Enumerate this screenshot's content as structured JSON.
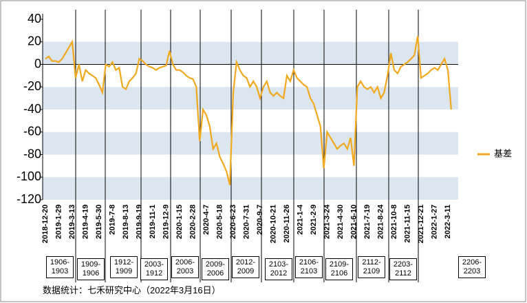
{
  "chart_data": {
    "type": "line",
    "x": [
      "2018-12-20",
      null,
      null,
      null,
      "2019-1-29",
      null,
      null,
      null,
      "2019-3-13",
      null,
      null,
      null,
      "2019-4-19",
      null,
      null,
      null,
      "2019-5-30",
      null,
      null,
      null,
      "2019-7-8",
      null,
      null,
      null,
      "2019-8-13",
      null,
      null,
      null,
      "2019-9-19",
      null,
      null,
      null,
      "2019-11-1",
      null,
      null,
      null,
      "2019-12-9",
      null,
      null,
      null,
      "2020-1-15",
      null,
      null,
      null,
      "2020-2-28",
      null,
      null,
      null,
      "2020-4-7",
      null,
      null,
      null,
      "2020-5-18",
      null,
      null,
      null,
      "2020-6-23",
      null,
      null,
      null,
      "2020-7-31",
      null,
      null,
      null,
      "2020-9-7",
      null,
      null,
      null,
      "2020-10-21",
      null,
      null,
      null,
      "2020-11-26",
      null,
      null,
      null,
      "2021-1-4",
      null,
      null,
      null,
      "2021-2-9",
      null,
      null,
      null,
      "2021-3-24",
      null,
      null,
      null,
      "2021-4-30",
      null,
      null,
      null,
      "2021-6-10",
      null,
      null,
      null,
      "2021-7-19",
      null,
      null,
      null,
      "2021-8-24",
      null,
      null,
      null,
      "2021-10-8",
      null,
      null,
      null,
      "2021-11-15",
      null,
      null,
      null,
      "2021-12-21",
      null,
      null,
      null,
      "2022-1-27",
      null,
      null,
      null,
      "2022-3-11",
      null
    ],
    "series": [
      {
        "name": "基差",
        "color": "#f2a81d",
        "values": [
          5,
          7,
          3,
          3,
          2,
          5,
          10,
          15,
          20,
          -12,
          0,
          -15,
          -5,
          -8,
          -10,
          -12,
          -18,
          -25,
          0,
          -2,
          2,
          -5,
          -3,
          -20,
          -22,
          -15,
          -12,
          -8,
          5,
          3,
          0,
          -2,
          -3,
          -5,
          -3,
          -2,
          -1,
          12,
          0,
          -5,
          -5,
          -7,
          -10,
          -12,
          -13,
          -20,
          -68,
          -40,
          -45,
          -55,
          -75,
          -70,
          -82,
          -88,
          -95,
          -107,
          -25,
          2,
          -5,
          -10,
          -12,
          -20,
          -15,
          -20,
          -30,
          -20,
          -15,
          -25,
          -28,
          -25,
          -28,
          -30,
          -10,
          -15,
          -5,
          -12,
          -15,
          -18,
          -20,
          -30,
          -35,
          -45,
          -55,
          -92,
          -60,
          -65,
          -70,
          -75,
          -72,
          -70,
          -75,
          -65,
          -90,
          -20,
          -15,
          -20,
          -22,
          -20,
          -25,
          -20,
          -30,
          -25,
          -10,
          10,
          -5,
          -8,
          -2,
          0,
          2,
          5,
          8,
          25,
          -12,
          -10,
          -8,
          -5,
          -3,
          -5,
          0,
          5,
          -5,
          -40
        ]
      }
    ],
    "ylim": [
      -120,
      40
    ],
    "yticks": [
      -120,
      -100,
      -80,
      -60,
      -40,
      -20,
      0,
      20,
      40
    ],
    "shaded_bands": true,
    "legend": "right"
  },
  "contracts": [
    "1906-1903",
    "1909-1906",
    "1912-1909",
    "2003-1912",
    "2006-2003",
    "2009-2006",
    "2012-2009",
    "2103-2012",
    "2106-2103",
    "2109-2106",
    "2112-2109",
    "2203-2112",
    "2206-2203"
  ],
  "source": "数据统计：七禾研究中心（2022年3月16日）"
}
